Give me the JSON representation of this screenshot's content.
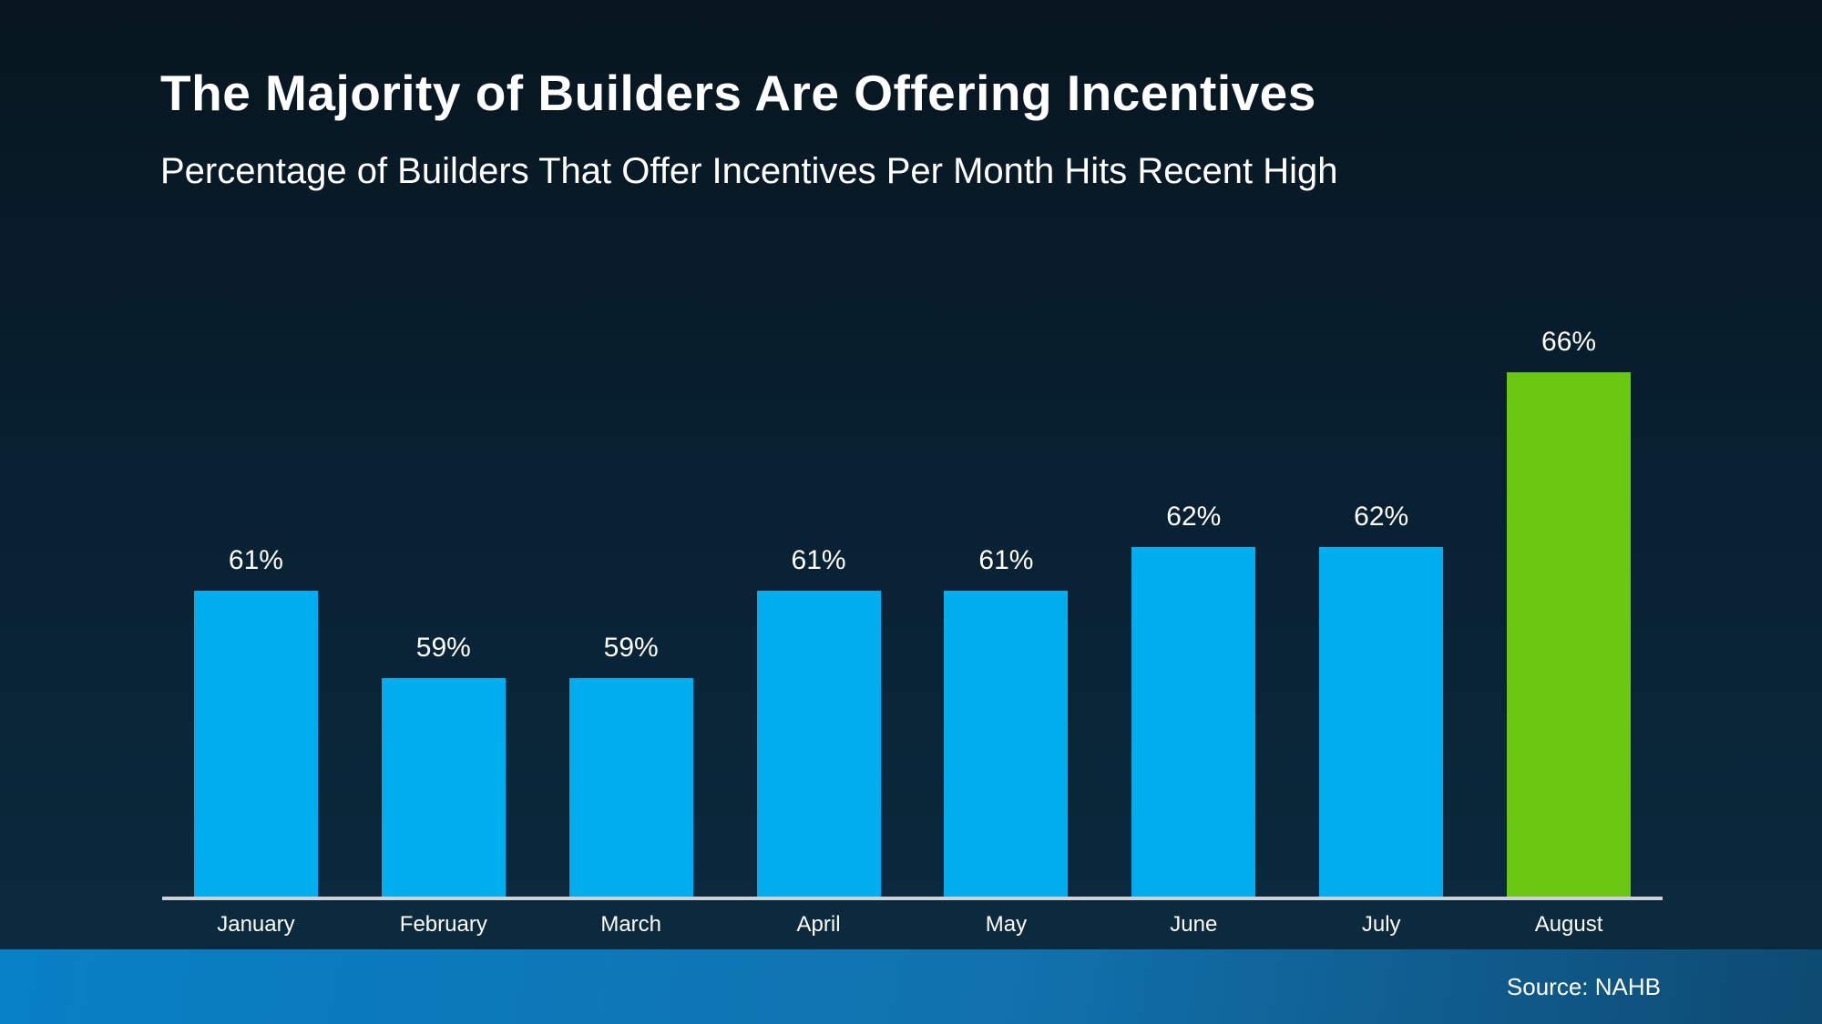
{
  "page": {
    "title": "The Majority of Builders Are Offering Incentives",
    "subtitle": "Percentage of Builders That Offer Incentives Per Month Hits Recent High",
    "source": "Source: NAHB"
  },
  "colors": {
    "background_top": "#07161f",
    "background_bottom": "#0b2a3e",
    "bar_default": "#00aeef",
    "bar_highlight": "#6ac813",
    "axis_line": "#ccd2d7",
    "text": "#ffffff",
    "footer_gradient_left": "#0880c6",
    "footer_gradient_right": "#0e4a72"
  },
  "chart_data": {
    "type": "bar",
    "title": "The Majority of Builders Are Offering Incentives",
    "subtitle": "Percentage of Builders That Offer Incentives Per Month Hits Recent High",
    "categories": [
      "January",
      "February",
      "March",
      "April",
      "May",
      "June",
      "July",
      "August"
    ],
    "values": [
      61,
      59,
      59,
      61,
      61,
      62,
      62,
      66
    ],
    "value_labels": [
      "61%",
      "59%",
      "59%",
      "61%",
      "61%",
      "62%",
      "62%",
      "66%"
    ],
    "unit": "%",
    "ylim": [
      54,
      67
    ],
    "highlight_index": 7,
    "highlight_category": "August",
    "grid": false,
    "legend": false,
    "xlabel": "",
    "ylabel": "",
    "source": "Source: NAHB"
  }
}
